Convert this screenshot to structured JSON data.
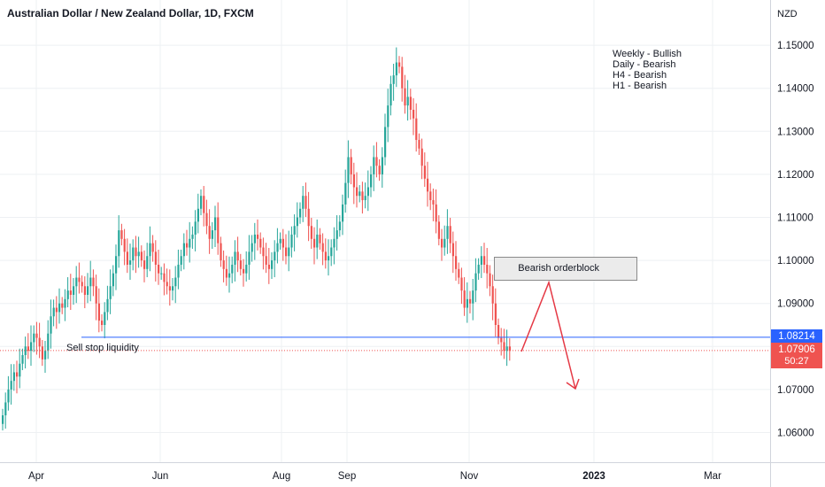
{
  "header": {
    "title": "Australian Dollar / New Zealand Dollar, 1D, FXCM",
    "currency": "NZD"
  },
  "timeframes": [
    "Weekly - Bullish",
    "Daily - Bearish",
    "H4 - Bearish",
    "H1 - Bearish"
  ],
  "annotations": {
    "orderblock_label": "Bearish orderblock",
    "liquidity_label": "Sell stop liquidity",
    "orderblock_range": [
      1.095,
      1.1005
    ],
    "liquidity_level": 1.08214
  },
  "price_tags": {
    "last_line": "1.08214",
    "close": "1.07906",
    "countdown": "50:27"
  },
  "colors": {
    "up": "#26a69a",
    "down": "#ef5350",
    "line": "#2962ff",
    "arrow": "#e53945",
    "grid": "#eef0f3"
  },
  "chart_data": {
    "type": "candlestick",
    "ylim": [
      1.0525,
      1.1525
    ],
    "yticks": [
      "1.06000",
      "1.07000",
      "1.08000",
      "1.09000",
      "1.10000",
      "1.11000",
      "1.12000",
      "1.13000",
      "1.14000",
      "1.15000"
    ],
    "xticks": [
      "Apr",
      "Jun",
      "Aug",
      "Sep",
      "Nov",
      "2023",
      "Mar"
    ],
    "last_close": 1.07906,
    "closes": [
      1.064,
      1.067,
      1.07,
      1.072,
      1.074,
      1.073,
      1.076,
      1.078,
      1.08,
      1.079,
      1.081,
      1.083,
      1.082,
      1.08,
      1.077,
      1.079,
      1.083,
      1.087,
      1.089,
      1.088,
      1.09,
      1.089,
      1.091,
      1.093,
      1.092,
      1.094,
      1.096,
      1.095,
      1.094,
      1.092,
      1.094,
      1.096,
      1.094,
      1.09,
      1.086,
      1.085,
      1.088,
      1.091,
      1.094,
      1.097,
      1.101,
      1.107,
      1.105,
      1.102,
      1.099,
      1.1,
      1.103,
      1.101,
      1.102,
      1.1,
      1.098,
      1.101,
      1.104,
      1.102,
      1.099,
      1.097,
      1.097,
      1.095,
      1.094,
      1.093,
      1.094,
      1.096,
      1.099,
      1.101,
      1.104,
      1.103,
      1.105,
      1.106,
      1.109,
      1.112,
      1.115,
      1.111,
      1.108,
      1.105,
      1.107,
      1.11,
      1.104,
      1.1,
      1.098,
      1.096,
      1.097,
      1.099,
      1.102,
      1.1,
      1.098,
      1.097,
      1.099,
      1.102,
      1.104,
      1.106,
      1.105,
      1.103,
      1.101,
      1.099,
      1.098,
      1.1,
      1.102,
      1.104,
      1.105,
      1.103,
      1.101,
      1.103,
      1.106,
      1.108,
      1.11,
      1.112,
      1.115,
      1.112,
      1.108,
      1.105,
      1.103,
      1.106,
      1.104,
      1.102,
      1.1,
      1.101,
      1.103,
      1.105,
      1.107,
      1.109,
      1.113,
      1.118,
      1.124,
      1.12,
      1.117,
      1.115,
      1.116,
      1.114,
      1.115,
      1.117,
      1.12,
      1.124,
      1.122,
      1.12,
      1.124,
      1.131,
      1.136,
      1.141,
      1.143,
      1.146,
      1.145,
      1.14,
      1.136,
      1.138,
      1.135,
      1.133,
      1.128,
      1.126,
      1.122,
      1.119,
      1.116,
      1.114,
      1.113,
      1.109,
      1.105,
      1.103,
      1.105,
      1.108,
      1.104,
      1.101,
      1.098,
      1.096,
      1.093,
      1.089,
      1.091,
      1.09,
      1.093,
      1.097,
      1.099,
      1.101,
      1.099,
      1.097,
      1.094,
      1.09,
      1.085,
      1.082,
      1.081,
      1.079,
      1.08,
      1.079
    ]
  }
}
